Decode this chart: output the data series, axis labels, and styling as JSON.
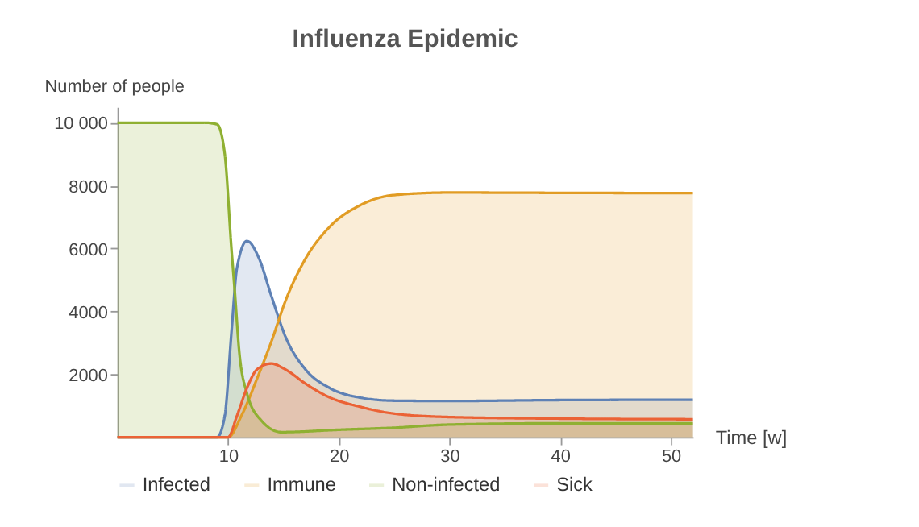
{
  "chart_data": {
    "type": "area",
    "title": "Influenza Epidemic",
    "xlabel": "Time [w]",
    "ylabel": "Number of people",
    "xlim": [
      0,
      52
    ],
    "ylim": [
      0,
      10500
    ],
    "xticks": [
      10,
      20,
      30,
      40,
      50
    ],
    "yticks": [
      2000,
      4000,
      6000,
      8000,
      {
        "value": 10000,
        "label": "10 000"
      }
    ],
    "legend": "bottom",
    "grid": false,
    "line_style": "solid",
    "marker": "none",
    "series": [
      {
        "name": "Infected",
        "color": "#5e81b5",
        "x": [
          0,
          9,
          9.7,
          10.3,
          10.8,
          11.7,
          12.8,
          13.9,
          15.2,
          17,
          19.2,
          21.9,
          25,
          30,
          40,
          52
        ],
        "values": [
          0,
          0,
          680,
          3320,
          5380,
          6240,
          5680,
          4500,
          3180,
          2150,
          1560,
          1260,
          1160,
          1150,
          1180,
          1190
        ]
      },
      {
        "name": "Immune",
        "color": "#e19c24",
        "x": [
          0,
          10,
          11.2,
          12.6,
          13.9,
          15.2,
          17,
          19.2,
          21.9,
          25,
          30,
          40,
          52
        ],
        "values": [
          0,
          0,
          680,
          1850,
          3030,
          4350,
          5680,
          6700,
          7370,
          7700,
          7780,
          7770,
          7760
        ]
      },
      {
        "name": "Non-infected",
        "color": "#8fb032",
        "x": [
          0,
          8,
          9,
          9.7,
          10.3,
          10.6,
          11,
          11.7,
          13,
          14.8,
          20,
          25,
          30,
          40,
          52
        ],
        "values": [
          10000,
          10000,
          9950,
          9000,
          6000,
          4650,
          2740,
          1400,
          530,
          160,
          235,
          300,
          400,
          440,
          440
        ]
      },
      {
        "name": "Sick",
        "color": "#eb6235",
        "x": [
          0,
          10,
          10.8,
          11.7,
          12.6,
          13.9,
          15.2,
          17,
          19.2,
          21.9,
          25,
          30,
          40,
          52
        ],
        "values": [
          0,
          0,
          680,
          1560,
          2150,
          2340,
          2150,
          1700,
          1260,
          970,
          750,
          640,
          590,
          570
        ]
      }
    ]
  }
}
